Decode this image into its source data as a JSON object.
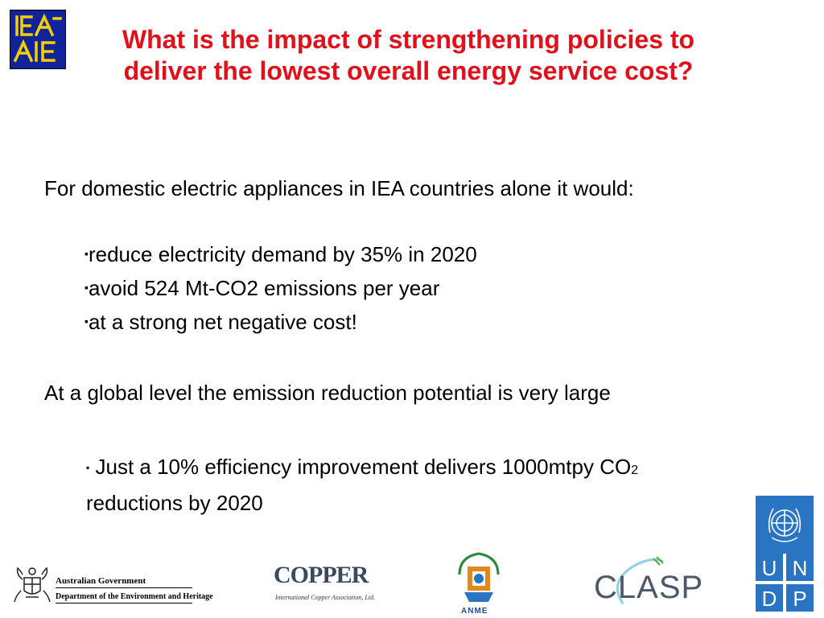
{
  "logos": {
    "iea": {
      "name": "IEA logo",
      "colors": {
        "bg": "#10239a",
        "fg": "#f5d000"
      }
    },
    "australia": {
      "line1": "Australian Government",
      "line2": "Department of the Environment and Heritage"
    },
    "copper": {
      "word": "COPPER",
      "sub": "International Copper Association, Ltd."
    },
    "anme": {
      "word": "ANME"
    },
    "clasp": {
      "word": "CLASP"
    },
    "undp": {
      "letters": [
        "U",
        "N",
        "D",
        "P"
      ]
    }
  },
  "slide": {
    "title": "What is the impact of strengthening policies to deliver the lowest overall energy service cost?",
    "title_color": "#e2101a",
    "para1": "For domestic electric appliances in IEA countries alone it would:",
    "bullets1": [
      "reduce electricity demand by 35% in 2020",
      "avoid 524 Mt-CO2 emissions per year",
      "at a strong net negative cost!"
    ],
    "bullet_mark": "▪",
    "para2": "At a global level the emission reduction potential is very large",
    "bullet2": {
      "mark": "▪",
      "text_a": " Just a 10% efficiency improvement delivers 1000mtpy CO",
      "subscript": "2",
      "text_b": " reductions by 2020"
    }
  }
}
